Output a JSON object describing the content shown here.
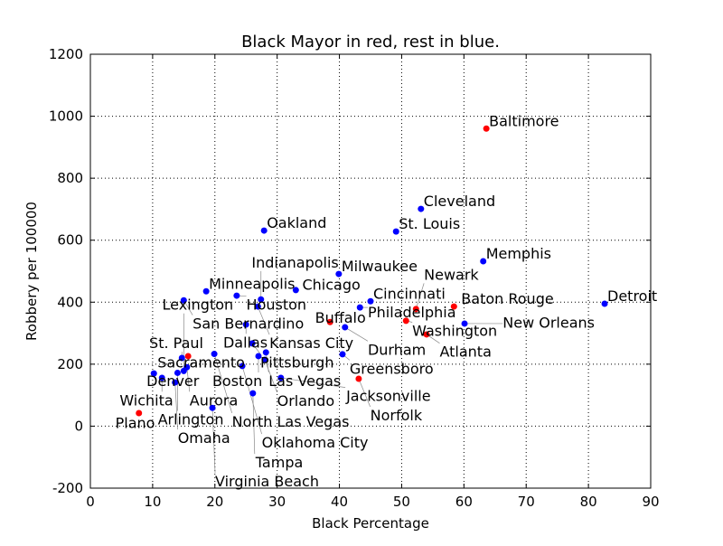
{
  "chart_data": {
    "type": "scatter",
    "title": "Black Mayor in red, rest in blue.",
    "xlabel": "Black Percentage",
    "ylabel": "Robbery per 100000",
    "xlim": [
      0,
      90
    ],
    "ylim": [
      -200,
      1200
    ],
    "xticks": [
      0,
      10,
      20,
      30,
      40,
      50,
      60,
      70,
      80,
      90
    ],
    "yticks": [
      -200,
      0,
      200,
      400,
      600,
      800,
      1000,
      1200
    ],
    "grid": true,
    "colors": {
      "black_mayor": "#ff0000",
      "other": "#0000ff"
    },
    "points": [
      {
        "name": "Baltimore",
        "x": 63.6,
        "y": 960,
        "black_mayor": true
      },
      {
        "name": "Cleveland",
        "x": 53.1,
        "y": 701,
        "black_mayor": false
      },
      {
        "name": "St. Louis",
        "x": 49.1,
        "y": 628,
        "black_mayor": false
      },
      {
        "name": "Oakland",
        "x": 27.9,
        "y": 631,
        "black_mayor": false
      },
      {
        "name": "Memphis",
        "x": 63.1,
        "y": 532,
        "black_mayor": false
      },
      {
        "name": "Detroit",
        "x": 82.6,
        "y": 395,
        "black_mayor": false
      },
      {
        "name": "Milwaukee",
        "x": 39.9,
        "y": 491,
        "black_mayor": false
      },
      {
        "name": "Chicago",
        "x": 33.0,
        "y": 439,
        "black_mayor": false
      },
      {
        "name": "Minneapolis",
        "x": 18.6,
        "y": 435,
        "black_mayor": false
      },
      {
        "name": "Houston",
        "x": 23.5,
        "y": 421,
        "black_mayor": false
      },
      {
        "name": "San Bernardino",
        "x": 15.0,
        "y": 406,
        "black_mayor": false
      },
      {
        "name": "Indianapolis",
        "x": 27.4,
        "y": 409,
        "black_mayor": false
      },
      {
        "name": "Kansas City",
        "x": 26.9,
        "y": 386,
        "black_mayor": false
      },
      {
        "name": "Cincinnati",
        "x": 45.0,
        "y": 403,
        "black_mayor": false
      },
      {
        "name": "Philadelphia",
        "x": 43.3,
        "y": 383,
        "black_mayor": false
      },
      {
        "name": "Newark",
        "x": 52.3,
        "y": 378,
        "black_mayor": true
      },
      {
        "name": "Baton Rouge",
        "x": 58.4,
        "y": 386,
        "black_mayor": true
      },
      {
        "name": "Washington",
        "x": 50.7,
        "y": 340,
        "black_mayor": true
      },
      {
        "name": "New Orleans",
        "x": 60.1,
        "y": 331,
        "black_mayor": false
      },
      {
        "name": "Buffalo",
        "x": 38.5,
        "y": 336,
        "black_mayor": true
      },
      {
        "name": "Durham",
        "x": 40.9,
        "y": 319,
        "black_mayor": false
      },
      {
        "name": "Atlanta",
        "x": 54.0,
        "y": 296,
        "black_mayor": true
      },
      {
        "name": "Dallas",
        "x": 25.0,
        "y": 328,
        "black_mayor": false
      },
      {
        "name": "Pittsburgh",
        "x": 26.0,
        "y": 267,
        "black_mayor": false
      },
      {
        "name": "Greensboro",
        "x": 40.5,
        "y": 232,
        "black_mayor": false
      },
      {
        "name": "Las Vegas",
        "x": 28.2,
        "y": 238,
        "black_mayor": false
      },
      {
        "name": "Orlando",
        "x": 28.0,
        "y": 214,
        "black_mayor": false
      },
      {
        "name": "Boston",
        "x": 27.0,
        "y": 226,
        "black_mayor": false
      },
      {
        "name": "North Las Vegas",
        "x": 19.9,
        "y": 233,
        "black_mayor": false
      },
      {
        "name": "Sacramento",
        "x": 15.7,
        "y": 226,
        "black_mayor": true
      },
      {
        "name": "St. Paul",
        "x": 14.7,
        "y": 220,
        "black_mayor": false
      },
      {
        "name": "Oklahoma City",
        "x": 24.4,
        "y": 194,
        "black_mayor": false
      },
      {
        "name": "Aurora",
        "x": 15.5,
        "y": 190,
        "black_mayor": false
      },
      {
        "name": "Lexington",
        "x": 15.0,
        "y": 178,
        "black_mayor": false
      },
      {
        "name": "Arlington",
        "x": 14.0,
        "y": 172,
        "black_mayor": false
      },
      {
        "name": "Denver",
        "x": 10.2,
        "y": 170,
        "black_mayor": false
      },
      {
        "name": "Wichita",
        "x": 11.5,
        "y": 156,
        "black_mayor": false
      },
      {
        "name": "Omaha",
        "x": 13.6,
        "y": 141,
        "black_mayor": false
      },
      {
        "name": "Jacksonville",
        "x": 30.6,
        "y": 156,
        "black_mayor": false
      },
      {
        "name": "Norfolk",
        "x": 43.1,
        "y": 153,
        "black_mayor": true
      },
      {
        "name": "Tampa",
        "x": 26.1,
        "y": 106,
        "black_mayor": false
      },
      {
        "name": "Virginia Beach",
        "x": 19.6,
        "y": 59,
        "black_mayor": false
      },
      {
        "name": "Plano",
        "x": 7.8,
        "y": 42,
        "black_mayor": true
      }
    ]
  }
}
